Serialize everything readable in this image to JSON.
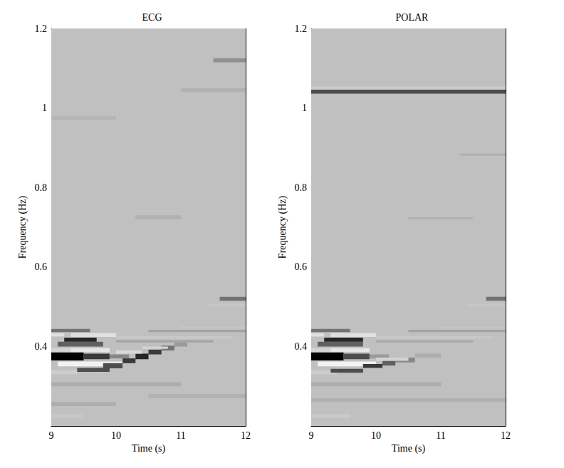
{
  "chart_data": [
    {
      "type": "heatmap",
      "title": "ECG",
      "x_label": "Time (s)",
      "y_label": "Frequency (Hz)",
      "xlim": [
        9,
        12
      ],
      "xticks": [
        9,
        10,
        11,
        12
      ],
      "ylim": [
        0.2,
        1.2
      ],
      "yticks": [
        0.4,
        0.6,
        0.8,
        1,
        1.2
      ],
      "zlim": [
        -1,
        1
      ],
      "colors": [
        "#ffffff",
        "#c0c0c0",
        "#000000"
      ],
      "cells": [
        [
          9,
          12,
          0.2,
          1.2,
          0
        ],
        [
          9,
          10,
          0.25,
          0.26,
          0.1
        ],
        [
          9,
          9.5,
          0.22,
          0.23,
          -0.1
        ],
        [
          9,
          11,
          0.3,
          0.31,
          0.1
        ],
        [
          10.5,
          12,
          0.27,
          0.28,
          0.08
        ],
        [
          9.0,
          9.4,
          0.33,
          0.34,
          -0.2
        ],
        [
          9.4,
          9.9,
          0.336,
          0.346,
          0.6
        ],
        [
          9.1,
          10.1,
          0.35,
          0.362,
          -0.8
        ],
        [
          9.0,
          9.5,
          0.365,
          0.385,
          1
        ],
        [
          9.5,
          9.9,
          0.368,
          0.382,
          0.7
        ],
        [
          9.9,
          10.2,
          0.37,
          0.38,
          0.3
        ],
        [
          9.0,
          9.3,
          0.386,
          0.396,
          -0.3
        ],
        [
          9.3,
          9.9,
          0.386,
          0.396,
          -0.6
        ],
        [
          9.1,
          9.8,
          0.4,
          0.412,
          0.5
        ],
        [
          9.2,
          9.7,
          0.412,
          0.422,
          0.8
        ],
        [
          9.0,
          9.2,
          0.425,
          0.433,
          -0.5
        ],
        [
          9.3,
          10.0,
          0.424,
          0.434,
          -0.5
        ],
        [
          9.0,
          9.6,
          0.436,
          0.444,
          0.4
        ],
        [
          9.8,
          10.1,
          0.345,
          0.358,
          0.6
        ],
        [
          10.1,
          10.3,
          0.358,
          0.37,
          0.7
        ],
        [
          10.3,
          10.5,
          0.368,
          0.382,
          0.8
        ],
        [
          10.5,
          10.7,
          0.38,
          0.392,
          0.7
        ],
        [
          10.7,
          10.9,
          0.39,
          0.402,
          0.4
        ],
        [
          10.9,
          11.1,
          0.4,
          0.41,
          0.2
        ],
        [
          10.0,
          10.4,
          0.382,
          0.39,
          -0.4
        ],
        [
          10.4,
          10.8,
          0.394,
          0.4,
          -0.3
        ],
        [
          10.0,
          11.5,
          0.41,
          0.416,
          0.15
        ],
        [
          10.0,
          11.8,
          0.42,
          0.426,
          -0.15
        ],
        [
          10.5,
          12,
          0.436,
          0.442,
          0.15
        ],
        [
          11.0,
          12,
          0.445,
          0.45,
          -0.1
        ],
        [
          11.4,
          12,
          0.5,
          0.508,
          -0.1
        ],
        [
          11.6,
          12,
          0.515,
          0.525,
          0.4
        ],
        [
          10.3,
          11,
          0.72,
          0.73,
          0.08
        ],
        [
          9,
          10,
          0.97,
          0.98,
          0.05
        ],
        [
          11.0,
          12,
          1.04,
          1.05,
          0.08
        ],
        [
          11.5,
          12,
          1.115,
          1.125,
          0.25
        ]
      ]
    },
    {
      "type": "heatmap",
      "title": "POLAR",
      "x_label": "Time (s)",
      "y_label": "Frequency (Hz)",
      "xlim": [
        9,
        12
      ],
      "xticks": [
        9,
        10,
        11,
        12
      ],
      "ylim": [
        0.2,
        1.2
      ],
      "yticks": [
        0.4,
        0.6,
        0.8,
        1,
        1.2
      ],
      "zlim": [
        -1,
        1
      ],
      "colors": [
        "#ffffff",
        "#c0c0c0",
        "#000000"
      ],
      "cells": [
        [
          9,
          12,
          0.2,
          1.2,
          0
        ],
        [
          9,
          9.6,
          0.22,
          0.23,
          -0.15
        ],
        [
          9,
          12,
          0.26,
          0.27,
          0.08
        ],
        [
          9,
          11,
          0.3,
          0.31,
          0.1
        ],
        [
          9.0,
          9.4,
          0.33,
          0.34,
          -0.2
        ],
        [
          9.3,
          9.8,
          0.334,
          0.344,
          0.6
        ],
        [
          9.1,
          10.0,
          0.35,
          0.362,
          -0.8
        ],
        [
          9.0,
          9.5,
          0.365,
          0.385,
          1
        ],
        [
          9.5,
          9.9,
          0.368,
          0.382,
          0.6
        ],
        [
          9.9,
          10.2,
          0.37,
          0.38,
          0.2
        ],
        [
          9.0,
          9.3,
          0.386,
          0.396,
          -0.3
        ],
        [
          9.3,
          9.9,
          0.386,
          0.396,
          -0.6
        ],
        [
          9.1,
          9.8,
          0.4,
          0.412,
          0.5
        ],
        [
          9.2,
          9.8,
          0.412,
          0.422,
          0.8
        ],
        [
          9.0,
          9.2,
          0.425,
          0.433,
          -0.5
        ],
        [
          9.3,
          10.0,
          0.424,
          0.434,
          -0.5
        ],
        [
          9.0,
          9.6,
          0.436,
          0.444,
          0.4
        ],
        [
          9.8,
          10.1,
          0.346,
          0.356,
          0.7
        ],
        [
          10.1,
          10.3,
          0.352,
          0.364,
          0.5
        ],
        [
          10.3,
          10.6,
          0.36,
          0.372,
          0.3
        ],
        [
          10.6,
          11.0,
          0.372,
          0.382,
          0.1
        ],
        [
          10.0,
          10.5,
          0.364,
          0.372,
          -0.3
        ],
        [
          10.0,
          11.5,
          0.41,
          0.416,
          0.12
        ],
        [
          10.0,
          11.8,
          0.42,
          0.426,
          -0.12
        ],
        [
          10.5,
          12,
          0.436,
          0.442,
          0.15
        ],
        [
          11.0,
          12,
          0.445,
          0.45,
          -0.1
        ],
        [
          11.4,
          12,
          0.5,
          0.508,
          -0.1
        ],
        [
          11.7,
          12,
          0.515,
          0.525,
          0.4
        ],
        [
          10.5,
          11.5,
          0.72,
          0.725,
          0.08
        ],
        [
          11.3,
          12,
          0.88,
          0.885,
          0.1
        ],
        [
          9,
          12,
          1.036,
          1.046,
          0.6
        ],
        [
          9,
          12,
          1.048,
          1.054,
          -0.2
        ]
      ]
    }
  ]
}
